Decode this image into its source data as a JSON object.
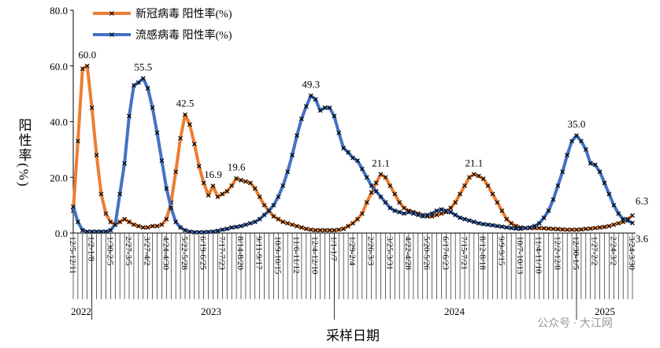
{
  "chart_data": {
    "type": "line",
    "y_label": "阳性率(%)",
    "x_label": "采样日期",
    "year_labels": [
      "2022",
      "2023",
      "2024",
      "2025"
    ],
    "watermark": "公众号 · 大江网",
    "categories": [
      "12/5-12/11",
      null,
      null,
      null,
      "1/2-1/8",
      null,
      null,
      null,
      "1/30-2/5",
      null,
      null,
      null,
      "2/27-3/5",
      null,
      null,
      null,
      "3/27-4/2",
      null,
      null,
      null,
      "4/24-4/30",
      null,
      null,
      null,
      "5/22-5/28",
      null,
      null,
      null,
      "6/19-6/25",
      null,
      null,
      null,
      "7/17-7/23",
      null,
      null,
      null,
      "8/14-8/20",
      null,
      null,
      null,
      "9/11-9/17",
      null,
      null,
      null,
      "10/9-10/15",
      null,
      null,
      null,
      "11/6-11/12",
      null,
      null,
      null,
      "12/4-12/10",
      null,
      null,
      null,
      "1/1-1/7",
      null,
      null,
      null,
      "1/29-2/4",
      null,
      null,
      null,
      "2/26-3/3",
      null,
      null,
      null,
      "3/25-3/31",
      null,
      null,
      null,
      "4/22-4/28",
      null,
      null,
      null,
      "5/20-5/26",
      null,
      null,
      null,
      "6/17-6/23",
      null,
      null,
      null,
      "7/15-7/21",
      null,
      null,
      null,
      "8/12-8/18",
      null,
      null,
      null,
      "9/9-9/15",
      null,
      null,
      null,
      "10/7-10/13",
      null,
      null,
      null,
      "11/4-11/10",
      null,
      null,
      null,
      "12/2-12/8",
      null,
      null,
      null,
      "12/30-1/5",
      null,
      null,
      null,
      "1/27-2/2",
      null,
      null,
      null,
      "2/24-3/2",
      null,
      null,
      null,
      "3/24-3/30"
    ],
    "series": [
      {
        "name": "新冠病毒 阳性率(%)",
        "color": "#ED7D31",
        "values": [
          8,
          33,
          59,
          60.0,
          45,
          28,
          14,
          7,
          4,
          3,
          4,
          5,
          4,
          3,
          2.5,
          2,
          2,
          2.5,
          2.5,
          3,
          5,
          11,
          22,
          34,
          42.5,
          39,
          32,
          24,
          18,
          13.5,
          16.9,
          13,
          14,
          15,
          17,
          19.6,
          19,
          18.5,
          18,
          16,
          13,
          10,
          8,
          6,
          5,
          4,
          3.5,
          3,
          2.5,
          2,
          1.5,
          1.2,
          1,
          1,
          1,
          1,
          1,
          1.2,
          1.5,
          2.5,
          3.5,
          5,
          7,
          11,
          14.5,
          18,
          21.1,
          20,
          17,
          14,
          11,
          9,
          8,
          7.5,
          7,
          6.5,
          6,
          6,
          6.5,
          7,
          7.5,
          9,
          11,
          14,
          17,
          20,
          21.1,
          20.5,
          19.5,
          17,
          14,
          11,
          8,
          5,
          3.5,
          2.5,
          2,
          1.8,
          1.8,
          1.8,
          1.8,
          1.7,
          1.6,
          1.5,
          1.4,
          1.3,
          1.2,
          1.2,
          1.2,
          1.3,
          1.5,
          1.6,
          1.8,
          2,
          2.2,
          2.5,
          3,
          3.5,
          4,
          5,
          6.3
        ],
        "value_labels": [
          null,
          null,
          null,
          "60.0",
          null,
          null,
          null,
          null,
          null,
          null,
          null,
          null,
          null,
          null,
          null,
          null,
          null,
          null,
          null,
          null,
          null,
          null,
          null,
          null,
          "42.5",
          null,
          null,
          null,
          null,
          null,
          "16.9",
          null,
          null,
          null,
          null,
          "19.6",
          null,
          null,
          null,
          null,
          null,
          null,
          null,
          null,
          null,
          null,
          null,
          null,
          null,
          null,
          null,
          null,
          null,
          null,
          null,
          null,
          null,
          null,
          null,
          null,
          null,
          null,
          null,
          null,
          null,
          null,
          "21.1",
          null,
          null,
          null,
          null,
          null,
          null,
          null,
          null,
          null,
          null,
          null,
          null,
          null,
          null,
          null,
          null,
          null,
          null,
          null,
          "21.1",
          null,
          null,
          null,
          null,
          null,
          null,
          null,
          null,
          null,
          null,
          null,
          null,
          null,
          null,
          null,
          null,
          null,
          null,
          null,
          null,
          null,
          null,
          null,
          null,
          null,
          null,
          null,
          null,
          null,
          null,
          null,
          null,
          null,
          "6.3"
        ]
      },
      {
        "name": "流感病毒 阳性率(%)",
        "color": "#4472C4",
        "values": [
          9.5,
          4,
          1,
          0.5,
          0.5,
          0.5,
          0.5,
          0.5,
          1,
          3,
          14,
          25,
          42,
          53,
          54,
          55.5,
          52,
          45,
          36,
          26,
          16,
          9,
          4,
          2,
          1,
          0.5,
          0.3,
          0.3,
          0.3,
          0.4,
          0.5,
          0.8,
          1.2,
          1.5,
          2,
          2.2,
          2.5,
          3,
          3.5,
          4,
          5,
          6.5,
          8,
          10,
          13,
          17,
          22,
          28,
          35,
          41,
          45.5,
          49.3,
          48,
          44,
          45,
          45,
          42,
          36,
          30.5,
          29,
          27,
          26,
          23,
          20,
          17,
          15,
          13,
          11,
          9,
          8,
          7.5,
          7,
          7.5,
          7,
          6.5,
          6,
          6.5,
          7,
          8,
          8.5,
          8,
          7.5,
          6.5,
          5.5,
          5,
          4.5,
          4,
          3.5,
          3.2,
          3,
          2.8,
          2.5,
          2.3,
          2,
          1.8,
          1.6,
          1.5,
          1.8,
          2,
          2.5,
          3.5,
          5.5,
          8,
          12,
          17,
          22,
          28,
          33,
          35.0,
          33,
          30,
          25,
          24.5,
          22,
          18,
          14,
          10,
          7,
          5,
          4.5,
          3.6
        ],
        "value_labels": [
          null,
          null,
          null,
          null,
          null,
          null,
          null,
          null,
          null,
          null,
          null,
          null,
          null,
          null,
          null,
          "55.5",
          null,
          null,
          null,
          null,
          null,
          null,
          null,
          null,
          null,
          null,
          null,
          null,
          null,
          null,
          null,
          null,
          null,
          null,
          null,
          null,
          null,
          null,
          null,
          null,
          null,
          null,
          null,
          null,
          null,
          null,
          null,
          null,
          null,
          null,
          null,
          "49.3",
          null,
          null,
          null,
          null,
          null,
          null,
          null,
          null,
          null,
          null,
          null,
          null,
          null,
          null,
          null,
          null,
          null,
          null,
          null,
          null,
          null,
          null,
          null,
          null,
          null,
          null,
          null,
          null,
          null,
          null,
          null,
          null,
          null,
          null,
          null,
          null,
          null,
          null,
          null,
          null,
          null,
          null,
          null,
          null,
          null,
          null,
          null,
          null,
          null,
          null,
          null,
          null,
          null,
          null,
          null,
          null,
          "35.0",
          null,
          null,
          null,
          null,
          null,
          null,
          null,
          null,
          null,
          null,
          null,
          "3.6"
        ]
      }
    ],
    "ylim": [
      0,
      80
    ],
    "yticks": [
      {
        "value": 0,
        "label": "0.0"
      },
      {
        "value": 20,
        "label": "20.0"
      },
      {
        "value": 40,
        "label": "40.0"
      },
      {
        "value": 60,
        "label": "60.0"
      },
      {
        "value": 80,
        "label": "80.0"
      }
    ],
    "legend": "upper left"
  }
}
